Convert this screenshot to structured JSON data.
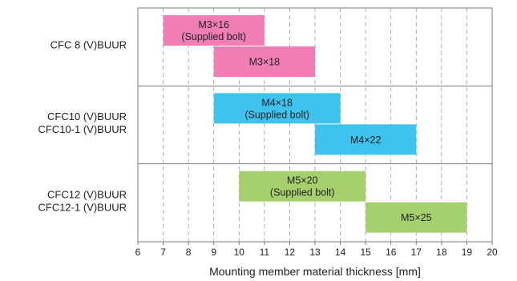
{
  "chart_data": {
    "type": "bar",
    "orientation": "horizontal-range",
    "xlabel": "Mounting member material thickness [mm]",
    "xlim": [
      6,
      20
    ],
    "xticks": [
      "6",
      "7",
      "8",
      "9",
      "10",
      "11",
      "12",
      "13",
      "14",
      "15",
      "16",
      "17",
      "18",
      "19",
      "20"
    ],
    "grid": "vertical dashed",
    "groups": [
      {
        "label_lines": [
          "CFC 8 (V)BUUR"
        ],
        "bars": [
          {
            "label_lines": [
              "M3×16",
              "(Supplied bolt)"
            ],
            "start": 7,
            "end": 11,
            "color": "#f07eb4"
          },
          {
            "label_lines": [
              "M3×18"
            ],
            "start": 9,
            "end": 13,
            "color": "#f07eb4"
          }
        ]
      },
      {
        "label_lines": [
          "CFC10 (V)BUUR",
          "CFC10-1 (V)BUUR"
        ],
        "bars": [
          {
            "label_lines": [
              "M4×18",
              "(Supplied bolt)"
            ],
            "start": 9,
            "end": 14,
            "color": "#3ec2ee"
          },
          {
            "label_lines": [
              "M4×22"
            ],
            "start": 13,
            "end": 17,
            "color": "#3ec2ee"
          }
        ]
      },
      {
        "label_lines": [
          "CFC12 (V)BUUR",
          "CFC12-1 (V)BUUR"
        ],
        "bars": [
          {
            "label_lines": [
              "M5×20",
              "(Supplied bolt)"
            ],
            "start": 10,
            "end": 15,
            "color": "#a6cf6d"
          },
          {
            "label_lines": [
              "M5×25"
            ],
            "start": 15,
            "end": 19,
            "color": "#a6cf6d"
          }
        ]
      }
    ]
  }
}
